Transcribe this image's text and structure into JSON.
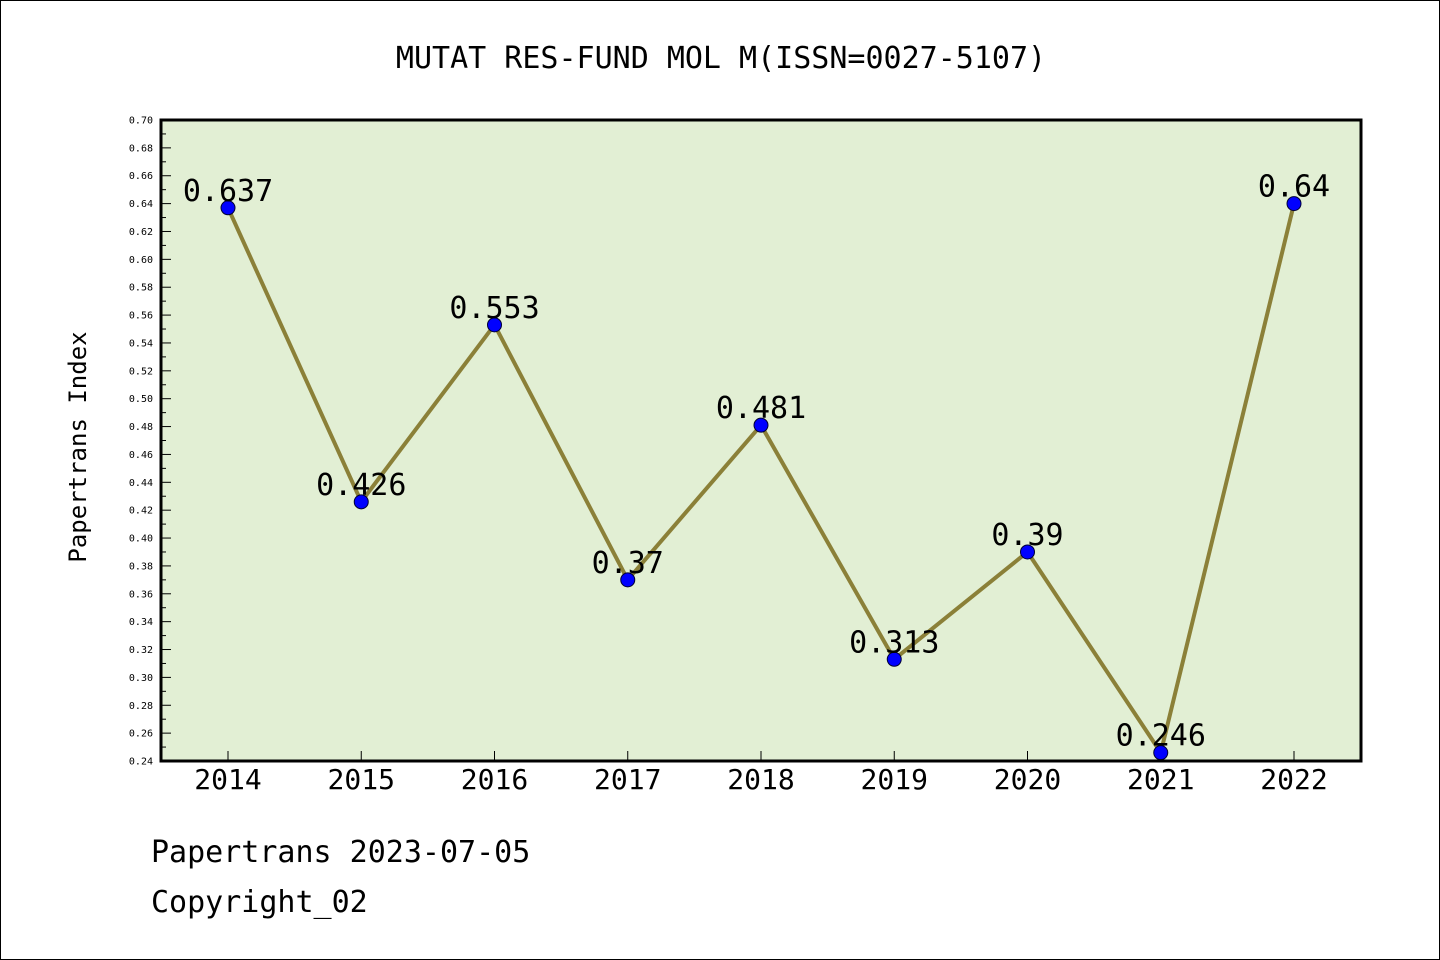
{
  "chart_data": {
    "type": "line",
    "title": "MUTAT RES-FUND MOL M(ISSN=0027-5107)",
    "xlabel": "",
    "ylabel": "Papertrans Index",
    "categories": [
      "2014",
      "2015",
      "2016",
      "2017",
      "2018",
      "2019",
      "2020",
      "2021",
      "2022"
    ],
    "values": [
      0.637,
      0.426,
      0.553,
      0.37,
      0.481,
      0.313,
      0.39,
      0.246,
      0.64
    ],
    "data_labels": [
      "0.637",
      "0.426",
      "0.553",
      "0.37",
      "0.481",
      "0.313",
      "0.39",
      "0.246",
      "0.64"
    ],
    "ylim": [
      0.24,
      0.7
    ],
    "y_ticks": [
      "0.24",
      "0.26",
      "0.28",
      "0.30",
      "0.32",
      "0.34",
      "0.36",
      "0.38",
      "0.40",
      "0.42",
      "0.44",
      "0.46",
      "0.48",
      "0.50",
      "0.52",
      "0.54",
      "0.56",
      "0.58",
      "0.60",
      "0.62",
      "0.64",
      "0.66",
      "0.68",
      "0.70"
    ],
    "grid": false,
    "legend": "none",
    "colors": {
      "plot_background": "#e2efd4",
      "line": "#8b8038",
      "marker": "#0000ff",
      "axis": "#000000"
    }
  },
  "footer": {
    "line1": "Papertrans 2023-07-05",
    "line2": "Copyright_02"
  }
}
